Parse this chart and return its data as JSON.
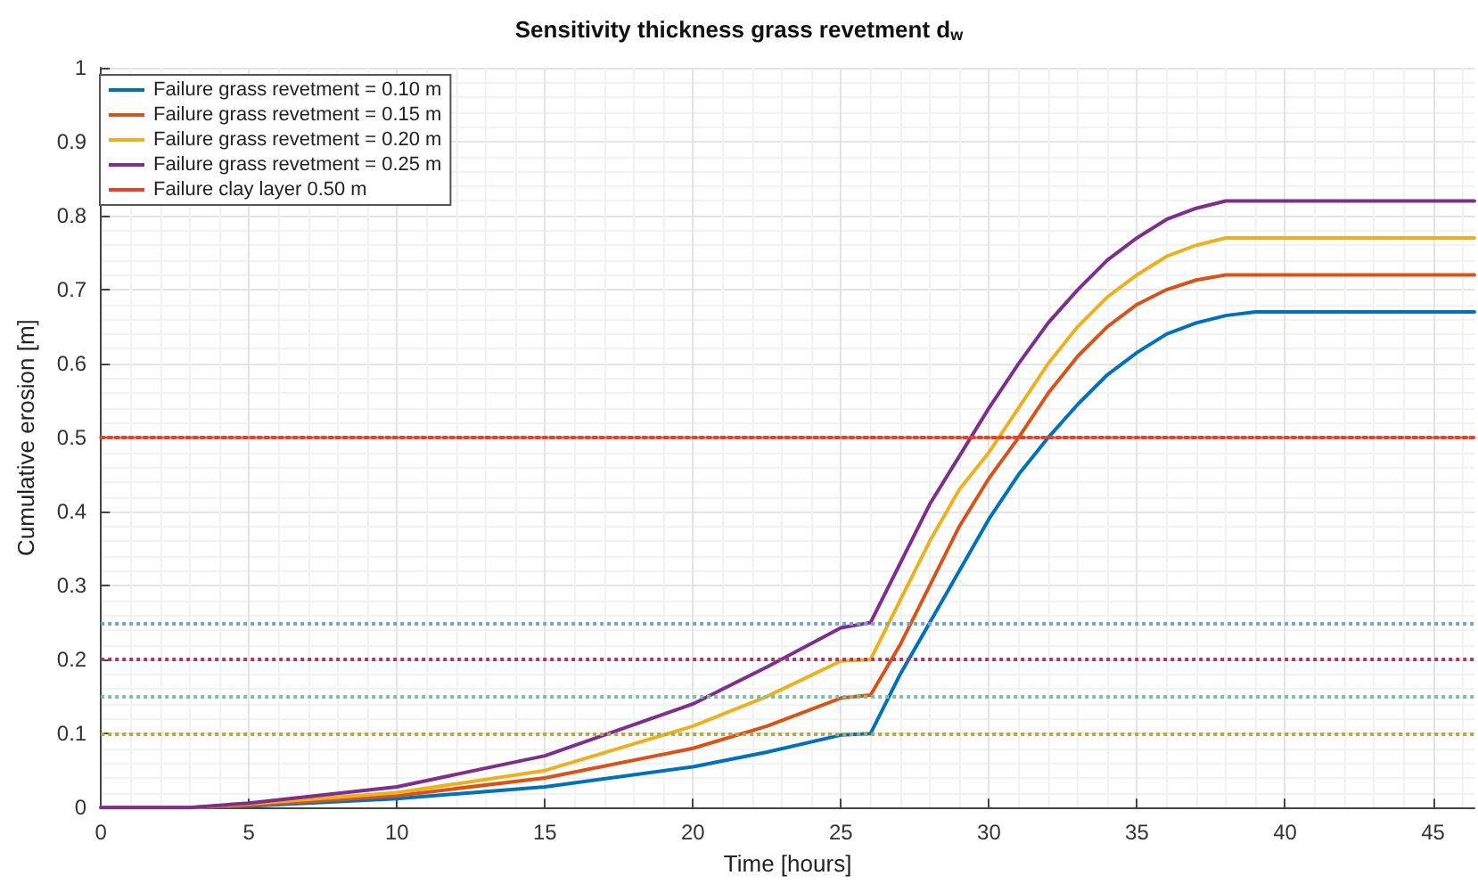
{
  "chart_data": {
    "type": "line",
    "title": "Sensitivity thickness grass revetment d$_{w}$",
    "xlabel": "Time [hours]",
    "ylabel": "Cumulative erosion [m]",
    "xlim": [
      0,
      46.4
    ],
    "xticks": [
      0,
      5,
      10,
      15,
      20,
      25,
      30,
      35,
      40,
      45
    ],
    "ylim": [
      0,
      1
    ],
    "yticks": [
      0,
      0.1,
      0.2,
      0.3,
      0.4,
      0.5,
      0.6,
      0.7,
      0.8,
      0.9,
      1
    ],
    "grid": true,
    "legend": "top left",
    "marker": "none",
    "line_style": "solid",
    "series": [
      {
        "name": "Failure grass revetment = 0.10 m",
        "color": "#0072bd",
        "x": [
          0,
          3,
          5,
          10,
          15,
          20,
          22.5,
          25,
          26,
          27,
          28,
          29,
          30,
          31,
          32,
          33,
          34,
          35,
          36,
          37,
          38,
          39,
          46.4
        ],
        "values": [
          0,
          0,
          0.002,
          0.012,
          0.028,
          0.055,
          0.075,
          0.098,
          0.1,
          0.18,
          0.25,
          0.32,
          0.39,
          0.45,
          0.5,
          0.545,
          0.585,
          0.615,
          0.64,
          0.655,
          0.665,
          0.67,
          0.67
        ]
      },
      {
        "name": "Failure grass revetment = 0.15 m",
        "color": "#d95319",
        "x": [
          0,
          3,
          5,
          10,
          15,
          20,
          22.5,
          25,
          26,
          27,
          28,
          29,
          30,
          31,
          32,
          33,
          34,
          35,
          36,
          37,
          38,
          39,
          46.4
        ],
        "values": [
          0,
          0,
          0.003,
          0.016,
          0.04,
          0.08,
          0.11,
          0.148,
          0.152,
          0.22,
          0.3,
          0.38,
          0.445,
          0.5,
          0.56,
          0.61,
          0.65,
          0.68,
          0.7,
          0.713,
          0.72,
          0.72,
          0.72
        ]
      },
      {
        "name": "Failure grass revetment = 0.20 m",
        "color": "#edb120",
        "x": [
          0,
          3,
          5,
          10,
          15,
          20,
          22.5,
          25,
          26,
          27,
          28,
          29,
          30,
          31,
          32,
          33,
          34,
          35,
          36,
          37,
          38,
          39,
          46.4
        ],
        "values": [
          0,
          0,
          0.005,
          0.02,
          0.05,
          0.11,
          0.15,
          0.198,
          0.2,
          0.28,
          0.36,
          0.43,
          0.48,
          0.54,
          0.6,
          0.65,
          0.69,
          0.72,
          0.745,
          0.76,
          0.77,
          0.77,
          0.77
        ]
      },
      {
        "name": "Failure grass revetment = 0.25 m",
        "color": "#7e2f8e",
        "x": [
          0,
          3,
          5,
          10,
          15,
          20,
          22.5,
          25,
          26,
          27,
          28,
          29,
          30,
          31,
          32,
          33,
          34,
          35,
          36,
          37,
          38,
          39,
          46.4
        ],
        "values": [
          0,
          0,
          0.006,
          0.028,
          0.07,
          0.14,
          0.19,
          0.243,
          0.25,
          0.33,
          0.41,
          0.475,
          0.54,
          0.6,
          0.655,
          0.7,
          0.74,
          0.77,
          0.795,
          0.81,
          0.82,
          0.82,
          0.82
        ]
      },
      {
        "name": "Failure clay layer 0.50 m",
        "color": "#e8412a",
        "line_style": "dotted",
        "x": [
          0,
          46.4
        ],
        "values": [
          0.5,
          0.5
        ]
      }
    ],
    "ref_lines": [
      {
        "axis": "y",
        "value": 0.25,
        "color": "#6fa8cf",
        "line_style": "dotted"
      },
      {
        "axis": "y",
        "value": 0.2,
        "color": "#a0406a",
        "line_style": "dotted"
      },
      {
        "axis": "y",
        "value": 0.15,
        "color": "#7cc0a4",
        "line_style": "dotted"
      },
      {
        "axis": "y",
        "value": 0.1,
        "color": "#b3a84a",
        "line_style": "dotted"
      }
    ]
  }
}
